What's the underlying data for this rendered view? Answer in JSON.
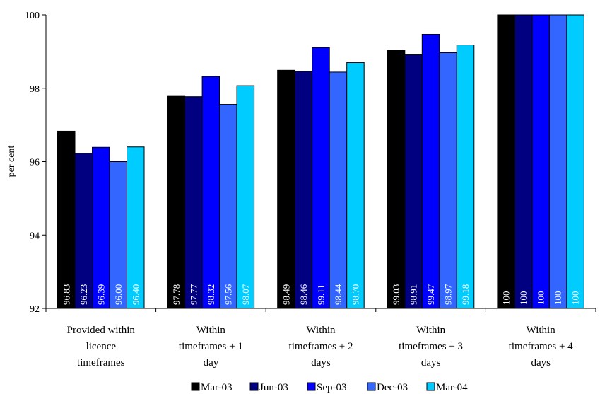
{
  "chart_data": {
    "type": "bar",
    "ylabel": "per cent",
    "ylim": [
      92,
      100
    ],
    "yticks": [
      92,
      94,
      96,
      98,
      100
    ],
    "grid": false,
    "legend_position": "bottom",
    "categories": [
      [
        "Provided within",
        "licence",
        "timeframes"
      ],
      [
        "Within",
        "timeframes + 1",
        "day"
      ],
      [
        "Within",
        "timeframes + 2",
        "days"
      ],
      [
        "Within",
        "timeframes + 3",
        "days"
      ],
      [
        "Within",
        "timeframes + 4",
        "days"
      ]
    ],
    "series": [
      {
        "name": "Mar-03",
        "color": "#000000",
        "values": [
          96.83,
          97.78,
          98.49,
          99.03,
          100
        ],
        "labels": [
          "96.83",
          "97.78",
          "98.49",
          "99.03",
          "100"
        ]
      },
      {
        "name": "Jun-03",
        "color": "#000080",
        "values": [
          96.23,
          97.77,
          98.46,
          98.91,
          100
        ],
        "labels": [
          "96.23",
          "97.77",
          "98.46",
          "98.91",
          "100"
        ]
      },
      {
        "name": "Sep-03",
        "color": "#0000ff",
        "values": [
          96.39,
          98.32,
          99.11,
          99.47,
          100
        ],
        "labels": [
          "96.39",
          "98.32",
          "99.11",
          "99.47",
          "100"
        ]
      },
      {
        "name": "Dec-03",
        "color": "#3366ff",
        "values": [
          96.0,
          97.56,
          98.44,
          98.97,
          100
        ],
        "labels": [
          "96.00",
          "97.56",
          "98.44",
          "98.97",
          "100"
        ]
      },
      {
        "name": "Mar-04",
        "color": "#00ccff",
        "values": [
          96.4,
          98.07,
          98.7,
          99.18,
          100
        ],
        "labels": [
          "96.40",
          "98.07",
          "98.70",
          "99.18",
          "100"
        ]
      }
    ]
  }
}
